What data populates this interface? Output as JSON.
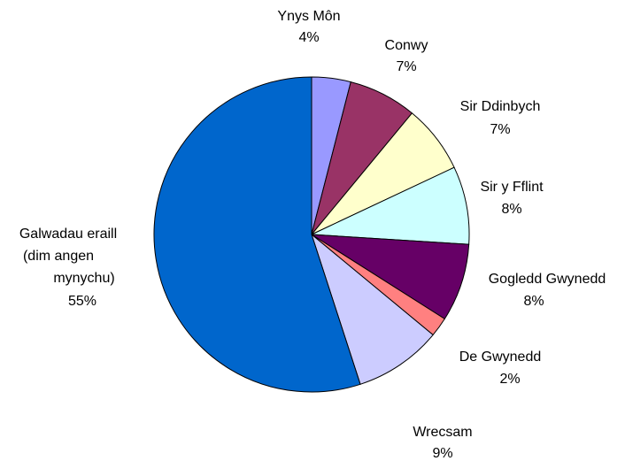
{
  "chart_data": {
    "type": "pie",
    "categories": [
      "Ynys Môn",
      "Conwy",
      "Sir Ddinbych",
      "Sir y Fflint",
      "Gogledd Gwynedd",
      "De Gwynedd",
      "Wrecsam",
      [
        "Galwadau eraill",
        "(dim angen",
        "mynychu)"
      ]
    ],
    "values": [
      4,
      7,
      7,
      8,
      8,
      2,
      9,
      55
    ],
    "value_labels": [
      "4%",
      "7%",
      "7%",
      "8%",
      "8%",
      "2%",
      "9%",
      "55%"
    ],
    "colors": [
      "#9999ff",
      "#993366",
      "#ffffcc",
      "#ccffff",
      "#660066",
      "#ff8080",
      "#ccccff",
      "#0066cc"
    ]
  }
}
